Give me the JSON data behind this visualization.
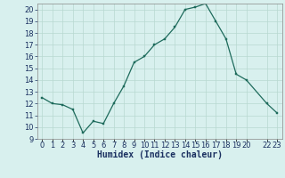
{
  "x": [
    0,
    1,
    2,
    3,
    4,
    5,
    6,
    7,
    8,
    9,
    10,
    11,
    12,
    13,
    14,
    15,
    16,
    17,
    18,
    19,
    20,
    22,
    23
  ],
  "y": [
    12.5,
    12.0,
    11.9,
    11.5,
    9.5,
    10.5,
    10.3,
    12.0,
    13.5,
    15.5,
    16.0,
    17.0,
    17.5,
    18.5,
    20.0,
    20.2,
    20.5,
    19.0,
    17.5,
    14.5,
    14.0,
    12.0,
    11.2
  ],
  "xlabel": "Humidex (Indice chaleur)",
  "xtick_positions": [
    0,
    1,
    2,
    3,
    4,
    5,
    6,
    7,
    8,
    9,
    10,
    11,
    12,
    13,
    14,
    15,
    16,
    17,
    18,
    19,
    20,
    22,
    23
  ],
  "xtick_labels": [
    "0",
    "1",
    "2",
    "3",
    "4",
    "5",
    "6",
    "7",
    "8",
    "9",
    "10",
    "11",
    "12",
    "13",
    "14",
    "15",
    "16",
    "17",
    "18",
    "19",
    "20",
    "22",
    "23"
  ],
  "ylim": [
    9,
    20.5
  ],
  "yticks": [
    9,
    10,
    11,
    12,
    13,
    14,
    15,
    16,
    17,
    18,
    19,
    20
  ],
  "xlim": [
    -0.5,
    23.5
  ],
  "line_color": "#1e6b5c",
  "marker_color": "#1e6b5c",
  "bg_color": "#d8f0ee",
  "grid_major_color": "#b8d8d0",
  "grid_minor_color": "#c8e8e0",
  "xlabel_color": "#1a3060",
  "tick_color": "#1a3060",
  "label_fontsize": 7,
  "tick_fontsize": 6
}
